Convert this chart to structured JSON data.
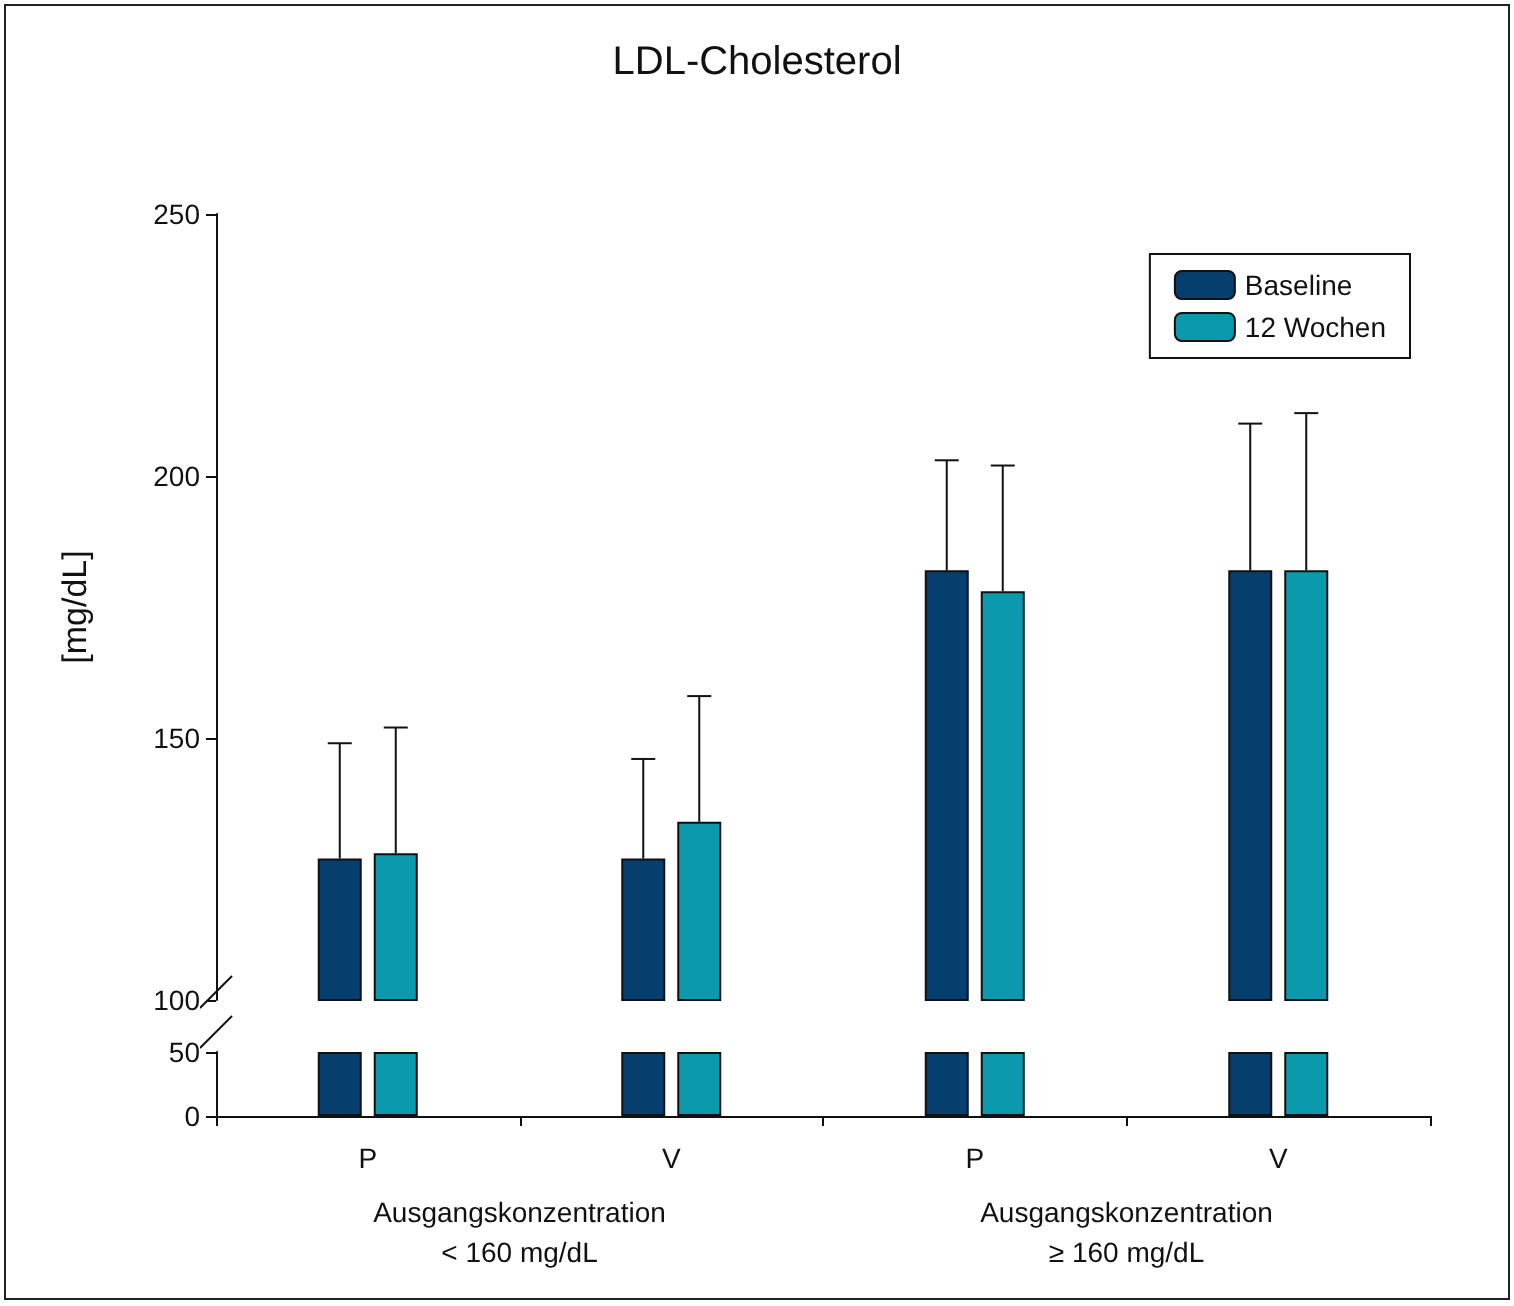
{
  "chart_data": [
    {
      "type": "bar",
      "title": "LDL-Cholesterol",
      "ylabel": "[mg/dL]",
      "series": [
        {
          "name": "Baseline",
          "color": "#063e6e",
          "values": [
            127,
            127,
            182,
            182
          ],
          "errors": [
            22,
            19,
            21,
            28
          ]
        },
        {
          "name": "12 Wochen",
          "color": "#0b9aad",
          "values": [
            128,
            134,
            178,
            182
          ],
          "errors": [
            24,
            24,
            24,
            30
          ]
        }
      ],
      "ylim": [
        100,
        250
      ],
      "yticks": [
        100,
        150,
        200,
        250
      ],
      "tick_labels": "y",
      "legend": "top right",
      "grid": false
    },
    {
      "type": "bar",
      "categories": [
        "P",
        "V",
        "P",
        "V"
      ],
      "series": [
        {
          "color": "#063e6e",
          "values": [
            50,
            50,
            50,
            50
          ]
        },
        {
          "color": "#0b9aad",
          "values": [
            50,
            50,
            50,
            50
          ]
        }
      ],
      "ylim": [
        0,
        50
      ],
      "yticks": [
        0,
        50
      ],
      "grid": false,
      "annotations": [
        "Ausgangskonzentration\n< 160 mg/dL",
        "Ausgangskonzentration\n≥ 160 mg/dL"
      ]
    }
  ]
}
